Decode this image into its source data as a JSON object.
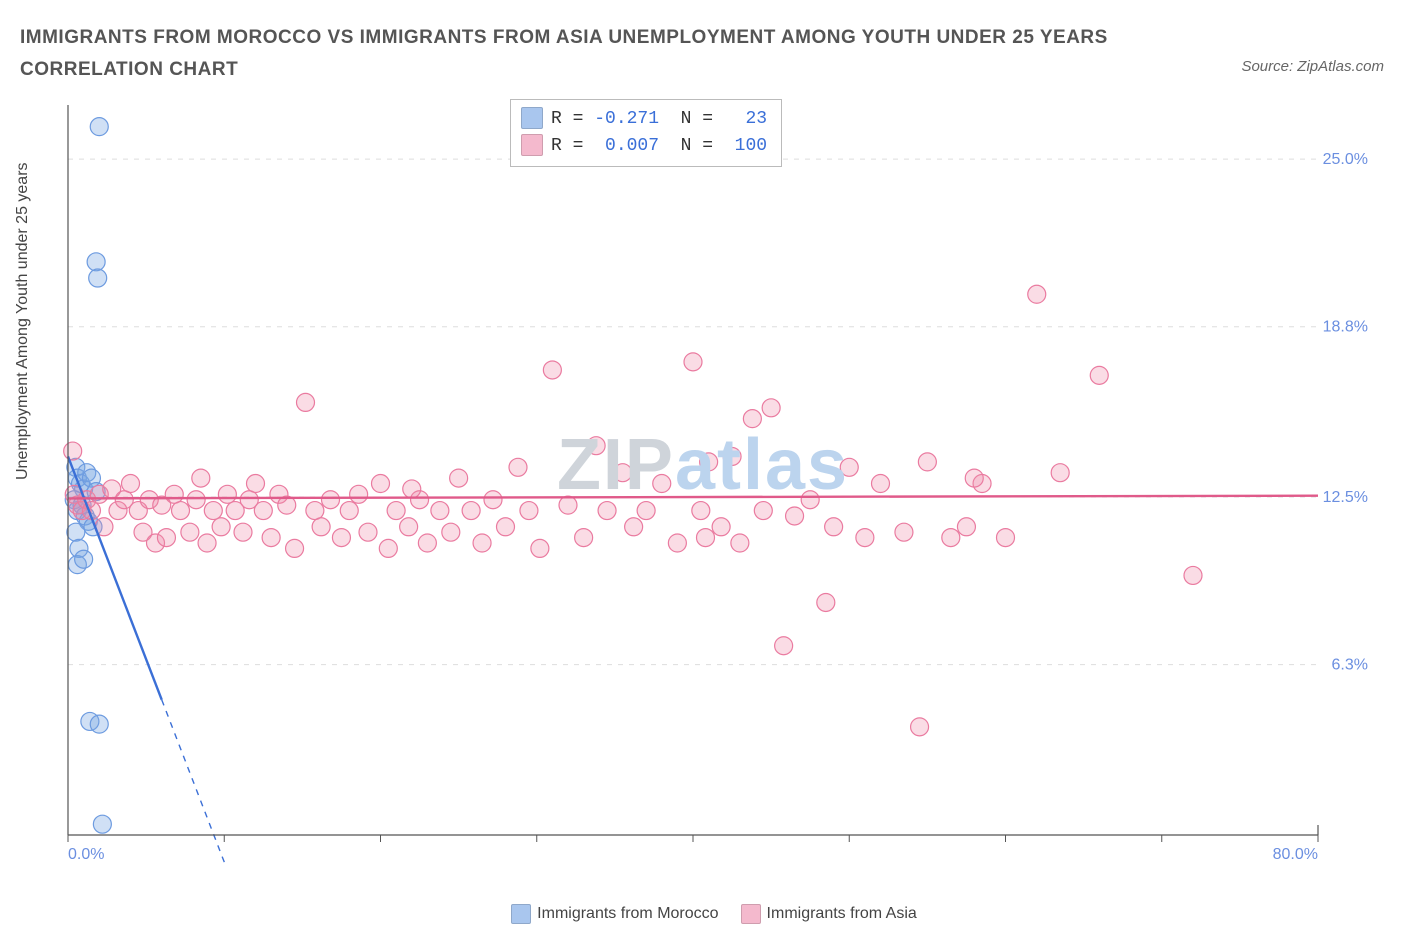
{
  "title": "IMMIGRANTS FROM MOROCCO VS IMMIGRANTS FROM ASIA UNEMPLOYMENT AMONG YOUTH UNDER 25 YEARS CORRELATION CHART",
  "source": "Source: ZipAtlas.com",
  "watermark": {
    "text1": "ZIP",
    "text2": "atlas",
    "color1": "#cfd4da",
    "color2": "#bcd4ee",
    "fontsize": 72
  },
  "ylabel": "Unemployment Among Youth under 25 years",
  "chart": {
    "type": "scatter",
    "background_color": "#ffffff",
    "grid_color": "#dddddd",
    "axis_color": "#555555",
    "xlim": [
      0,
      80
    ],
    "ylim": [
      0,
      27
    ],
    "x_ticks": [
      0,
      10,
      20,
      30,
      40,
      50,
      60,
      70,
      80
    ],
    "x_tick_labels_shown": {
      "0": "0.0%",
      "80": "80.0%"
    },
    "y_ticks": [
      6.3,
      12.5,
      18.8,
      25.0
    ],
    "y_tick_labels": [
      "6.3%",
      "12.5%",
      "18.8%",
      "25.0%"
    ],
    "y_tick_color": "#6b8fe0",
    "x_tick_color": "#6b8fe0",
    "marker_radius": 9,
    "marker_stroke_width": 1.2,
    "series": [
      {
        "name": "Immigrants from Morocco",
        "color_fill": "rgba(120,165,225,0.35)",
        "color_stroke": "#6d9be0",
        "swatch_color": "#a9c6ee",
        "R": "-0.271",
        "N": "23",
        "trend": {
          "x1": 0,
          "y1": 14.0,
          "x2": 6.0,
          "y2": 5.0,
          "dashed_extend_to_x": 11.5,
          "color": "#3b6fd6",
          "width": 2.4
        },
        "points": [
          [
            2.0,
            26.2
          ],
          [
            1.8,
            21.2
          ],
          [
            1.9,
            20.6
          ],
          [
            0.5,
            13.6
          ],
          [
            0.6,
            13.2
          ],
          [
            0.8,
            13.0
          ],
          [
            1.0,
            12.8
          ],
          [
            1.2,
            13.4
          ],
          [
            1.5,
            13.2
          ],
          [
            1.8,
            12.7
          ],
          [
            0.4,
            12.4
          ],
          [
            0.6,
            12.0
          ],
          [
            0.9,
            12.2
          ],
          [
            1.1,
            11.8
          ],
          [
            1.3,
            11.6
          ],
          [
            1.6,
            11.4
          ],
          [
            0.5,
            11.2
          ],
          [
            0.7,
            10.6
          ],
          [
            0.6,
            10.0
          ],
          [
            1.0,
            10.2
          ],
          [
            1.4,
            4.2
          ],
          [
            2.0,
            4.1
          ],
          [
            2.2,
            0.4
          ]
        ]
      },
      {
        "name": "Immigrants from Asia",
        "color_fill": "rgba(240,140,170,0.30)",
        "color_stroke": "#ea7ba0",
        "swatch_color": "#f4b9cd",
        "R": "0.007",
        "N": "100",
        "trend": {
          "x1": 0,
          "y1": 12.45,
          "x2": 80,
          "y2": 12.55,
          "color": "#e05a8a",
          "width": 2.4
        },
        "points": [
          [
            0.3,
            14.2
          ],
          [
            0.4,
            12.6
          ],
          [
            0.6,
            12.2
          ],
          [
            0.9,
            12.0
          ],
          [
            1.2,
            12.4
          ],
          [
            1.5,
            12.0
          ],
          [
            2.0,
            12.6
          ],
          [
            2.3,
            11.4
          ],
          [
            2.8,
            12.8
          ],
          [
            3.2,
            12.0
          ],
          [
            3.6,
            12.4
          ],
          [
            4.0,
            13.0
          ],
          [
            4.5,
            12.0
          ],
          [
            4.8,
            11.2
          ],
          [
            5.2,
            12.4
          ],
          [
            5.6,
            10.8
          ],
          [
            6.0,
            12.2
          ],
          [
            6.3,
            11.0
          ],
          [
            6.8,
            12.6
          ],
          [
            7.2,
            12.0
          ],
          [
            7.8,
            11.2
          ],
          [
            8.2,
            12.4
          ],
          [
            8.5,
            13.2
          ],
          [
            8.9,
            10.8
          ],
          [
            9.3,
            12.0
          ],
          [
            9.8,
            11.4
          ],
          [
            10.2,
            12.6
          ],
          [
            10.7,
            12.0
          ],
          [
            11.2,
            11.2
          ],
          [
            11.6,
            12.4
          ],
          [
            12.0,
            13.0
          ],
          [
            12.5,
            12.0
          ],
          [
            13.0,
            11.0
          ],
          [
            13.5,
            12.6
          ],
          [
            14.0,
            12.2
          ],
          [
            14.5,
            10.6
          ],
          [
            15.2,
            16.0
          ],
          [
            15.8,
            12.0
          ],
          [
            16.2,
            11.4
          ],
          [
            16.8,
            12.4
          ],
          [
            17.5,
            11.0
          ],
          [
            18.0,
            12.0
          ],
          [
            18.6,
            12.6
          ],
          [
            19.2,
            11.2
          ],
          [
            20.0,
            13.0
          ],
          [
            20.5,
            10.6
          ],
          [
            21.0,
            12.0
          ],
          [
            21.8,
            11.4
          ],
          [
            22.5,
            12.4
          ],
          [
            23.0,
            10.8
          ],
          [
            23.8,
            12.0
          ],
          [
            24.5,
            11.2
          ],
          [
            25.0,
            13.2
          ],
          [
            25.8,
            12.0
          ],
          [
            26.5,
            10.8
          ],
          [
            27.2,
            12.4
          ],
          [
            28.0,
            11.4
          ],
          [
            28.8,
            13.6
          ],
          [
            29.5,
            12.0
          ],
          [
            30.2,
            10.6
          ],
          [
            31.0,
            17.2
          ],
          [
            32.0,
            12.2
          ],
          [
            33.0,
            11.0
          ],
          [
            33.8,
            14.4
          ],
          [
            34.5,
            12.0
          ],
          [
            35.5,
            13.4
          ],
          [
            36.2,
            11.4
          ],
          [
            37.0,
            12.0
          ],
          [
            38.0,
            13.0
          ],
          [
            39.0,
            10.8
          ],
          [
            40.0,
            17.5
          ],
          [
            40.5,
            12.0
          ],
          [
            41.0,
            13.8
          ],
          [
            41.8,
            11.4
          ],
          [
            42.5,
            14.0
          ],
          [
            43.0,
            10.8
          ],
          [
            43.8,
            15.4
          ],
          [
            44.5,
            12.0
          ],
          [
            45.0,
            15.8
          ],
          [
            45.8,
            7.0
          ],
          [
            46.5,
            11.8
          ],
          [
            47.5,
            12.4
          ],
          [
            48.5,
            8.6
          ],
          [
            49.0,
            11.4
          ],
          [
            50.0,
            13.6
          ],
          [
            51.0,
            11.0
          ],
          [
            52.0,
            13.0
          ],
          [
            53.5,
            11.2
          ],
          [
            54.5,
            4.0
          ],
          [
            55.0,
            13.8
          ],
          [
            56.5,
            11.0
          ],
          [
            57.5,
            11.4
          ],
          [
            58.5,
            13.0
          ],
          [
            60.0,
            11.0
          ],
          [
            62.0,
            20.0
          ],
          [
            63.5,
            13.4
          ],
          [
            66.0,
            17.0
          ],
          [
            72.0,
            9.6
          ],
          [
            58.0,
            13.2
          ],
          [
            40.8,
            11.0
          ],
          [
            22.0,
            12.8
          ]
        ]
      }
    ]
  },
  "bottom_legend": {
    "items": [
      {
        "label": "Immigrants from Morocco",
        "swatch": "#a9c6ee"
      },
      {
        "label": "Immigrants from Asia",
        "swatch": "#f4b9cd"
      }
    ]
  }
}
